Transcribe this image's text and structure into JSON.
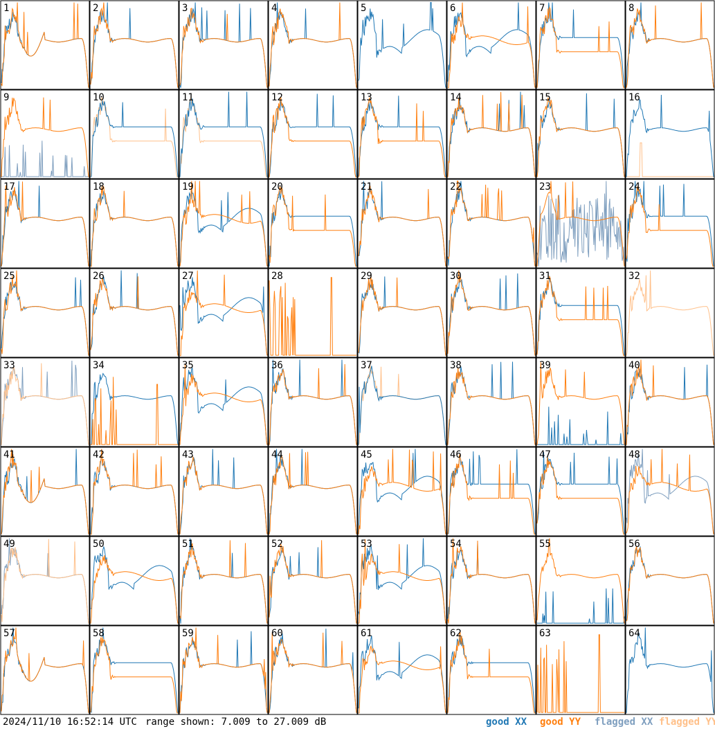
{
  "footer": {
    "timestamp": "2024/11/10 16:52:14 UTC",
    "range_text": "range shown: 7.009 to 27.009 dB"
  },
  "legend": {
    "good_xx": "good XX",
    "good_yy": "good YY",
    "flagged_xx": "flagged XX",
    "flagged_yy": "flagged YY"
  },
  "colors": {
    "good_xx": "#1f77b4",
    "good_yy": "#ff7f0e",
    "flagged_xx": "#7f9fbf",
    "flagged_yy": "#ffc08a"
  },
  "chart_data": {
    "type": "line",
    "layout": "8x8 small multiples",
    "value_range_db": [
      7.009,
      27.009
    ],
    "panels": [
      {
        "id": "1",
        "xx": "good",
        "yy": "good",
        "profile": "dip"
      },
      {
        "id": "2",
        "xx": "good",
        "yy": "good",
        "profile": "normal"
      },
      {
        "id": "3",
        "xx": "good",
        "yy": "good",
        "profile": "normal"
      },
      {
        "id": "4",
        "xx": "good",
        "yy": "good",
        "profile": "normal"
      },
      {
        "id": "5",
        "xx": "good",
        "yy": "none",
        "profile": "wave"
      },
      {
        "id": "6",
        "xx": "good",
        "yy": "good",
        "profile": "wave"
      },
      {
        "id": "7",
        "xx": "good",
        "yy": "good",
        "profile": "split"
      },
      {
        "id": "8",
        "xx": "good",
        "yy": "good",
        "profile": "normal"
      },
      {
        "id": "9",
        "xx": "flagged",
        "yy": "good",
        "profile": "xx-low"
      },
      {
        "id": "10",
        "xx": "good",
        "yy": "flagged",
        "profile": "split"
      },
      {
        "id": "11",
        "xx": "good",
        "yy": "flagged",
        "profile": "split"
      },
      {
        "id": "12",
        "xx": "good",
        "yy": "good",
        "profile": "split"
      },
      {
        "id": "13",
        "xx": "good",
        "yy": "good",
        "profile": "split"
      },
      {
        "id": "14",
        "xx": "good",
        "yy": "good",
        "profile": "normal"
      },
      {
        "id": "15",
        "xx": "good",
        "yy": "good",
        "profile": "normal"
      },
      {
        "id": "16",
        "xx": "good",
        "yy": "flagged",
        "profile": "yy-low"
      },
      {
        "id": "17",
        "xx": "good",
        "yy": "good",
        "profile": "normal"
      },
      {
        "id": "18",
        "xx": "good",
        "yy": "good",
        "profile": "normal"
      },
      {
        "id": "19",
        "xx": "good",
        "yy": "good",
        "profile": "wave"
      },
      {
        "id": "20",
        "xx": "good",
        "yy": "good",
        "profile": "split"
      },
      {
        "id": "21",
        "xx": "good",
        "yy": "good",
        "profile": "normal"
      },
      {
        "id": "22",
        "xx": "good",
        "yy": "good",
        "profile": "normal"
      },
      {
        "id": "23",
        "xx": "flagged",
        "yy": "good",
        "profile": "noisy"
      },
      {
        "id": "24",
        "xx": "good",
        "yy": "good",
        "profile": "split"
      },
      {
        "id": "25",
        "xx": "good",
        "yy": "good",
        "profile": "normal"
      },
      {
        "id": "26",
        "xx": "good",
        "yy": "good",
        "profile": "normal"
      },
      {
        "id": "27",
        "xx": "good",
        "yy": "good",
        "profile": "wave"
      },
      {
        "id": "28",
        "xx": "none",
        "yy": "good",
        "profile": "spikes"
      },
      {
        "id": "29",
        "xx": "good",
        "yy": "good",
        "profile": "normal"
      },
      {
        "id": "30",
        "xx": "good",
        "yy": "good",
        "profile": "normal"
      },
      {
        "id": "31",
        "xx": "good",
        "yy": "good",
        "profile": "split"
      },
      {
        "id": "32",
        "xx": "none",
        "yy": "flagged",
        "profile": "normal"
      },
      {
        "id": "33",
        "xx": "flagged",
        "yy": "flagged",
        "profile": "normal"
      },
      {
        "id": "34",
        "xx": "good",
        "yy": "good",
        "profile": "yy-spikes"
      },
      {
        "id": "35",
        "xx": "good",
        "yy": "good",
        "profile": "wave"
      },
      {
        "id": "36",
        "xx": "good",
        "yy": "good",
        "profile": "normal"
      },
      {
        "id": "37",
        "xx": "good",
        "yy": "flagged",
        "profile": "normal"
      },
      {
        "id": "38",
        "xx": "good",
        "yy": "good",
        "profile": "normal"
      },
      {
        "id": "39",
        "xx": "good",
        "yy": "good",
        "profile": "xx-low"
      },
      {
        "id": "40",
        "xx": "good",
        "yy": "good",
        "profile": "normal"
      },
      {
        "id": "41",
        "xx": "good",
        "yy": "good",
        "profile": "dip"
      },
      {
        "id": "42",
        "xx": "good",
        "yy": "good",
        "profile": "normal"
      },
      {
        "id": "43",
        "xx": "good",
        "yy": "good",
        "profile": "normal"
      },
      {
        "id": "44",
        "xx": "good",
        "yy": "good",
        "profile": "normal"
      },
      {
        "id": "45",
        "xx": "good",
        "yy": "good",
        "profile": "wave"
      },
      {
        "id": "46",
        "xx": "good",
        "yy": "good",
        "profile": "split"
      },
      {
        "id": "47",
        "xx": "good",
        "yy": "good",
        "profile": "split"
      },
      {
        "id": "48",
        "xx": "flagged",
        "yy": "good",
        "profile": "wave"
      },
      {
        "id": "49",
        "xx": "flagged",
        "yy": "flagged",
        "profile": "normal"
      },
      {
        "id": "50",
        "xx": "good",
        "yy": "good",
        "profile": "wave"
      },
      {
        "id": "51",
        "xx": "good",
        "yy": "good",
        "profile": "normal"
      },
      {
        "id": "52",
        "xx": "good",
        "yy": "good",
        "profile": "normal"
      },
      {
        "id": "53",
        "xx": "good",
        "yy": "good",
        "profile": "wave"
      },
      {
        "id": "54",
        "xx": "good",
        "yy": "good",
        "profile": "normal"
      },
      {
        "id": "55",
        "xx": "good",
        "yy": "good",
        "profile": "xx-low"
      },
      {
        "id": "56",
        "xx": "good",
        "yy": "good",
        "profile": "normal"
      },
      {
        "id": "57",
        "xx": "good",
        "yy": "good",
        "profile": "dip"
      },
      {
        "id": "58",
        "xx": "good",
        "yy": "good",
        "profile": "split"
      },
      {
        "id": "59",
        "xx": "good",
        "yy": "good",
        "profile": "normal"
      },
      {
        "id": "60",
        "xx": "good",
        "yy": "good",
        "profile": "normal"
      },
      {
        "id": "61",
        "xx": "good",
        "yy": "good",
        "profile": "wave"
      },
      {
        "id": "62",
        "xx": "good",
        "yy": "good",
        "profile": "split"
      },
      {
        "id": "63",
        "xx": "none",
        "yy": "good",
        "profile": "spikes"
      },
      {
        "id": "64",
        "xx": "good",
        "yy": "none",
        "profile": "normal"
      }
    ]
  }
}
